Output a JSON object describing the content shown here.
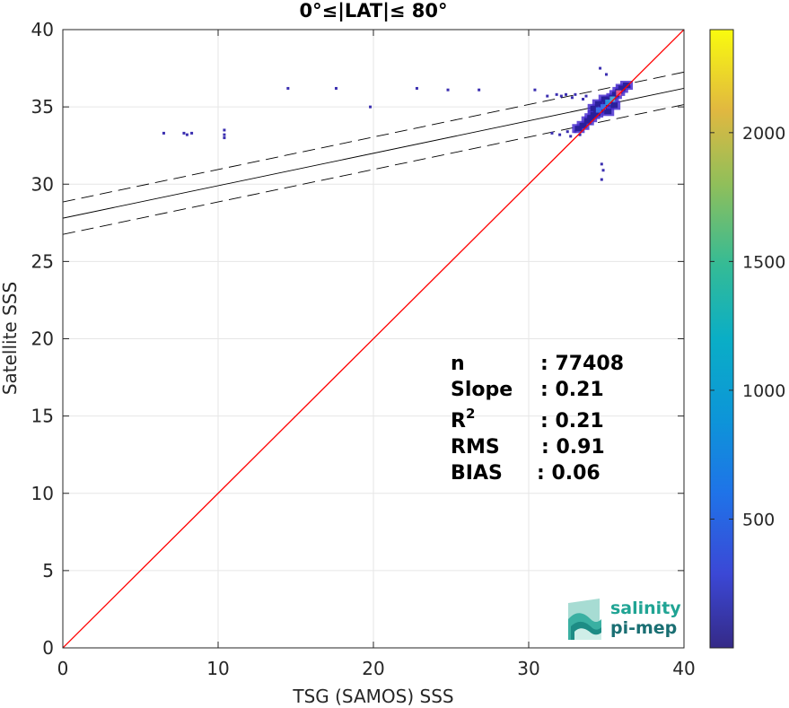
{
  "chart_data": {
    "type": "heatmap",
    "title": "0°≤|LAT|≤ 80°",
    "xlabel": "TSG (SAMOS) SSS",
    "ylabel": "Satellite SSS",
    "xlim": [
      0,
      40
    ],
    "ylim": [
      0,
      40
    ],
    "xticks": [
      "0",
      "10",
      "20",
      "30",
      "40"
    ],
    "yticks": [
      "0",
      "5",
      "10",
      "15",
      "20",
      "25",
      "30",
      "35",
      "40"
    ],
    "grid": true,
    "one_to_one_line": {
      "color": "#ff0000",
      "from": [
        0,
        0
      ],
      "to": [
        40,
        40
      ]
    },
    "regression": {
      "slope": 0.21,
      "intercept": 27.8,
      "envelope_offset": 1.05,
      "color": "#000000"
    },
    "stats": [
      {
        "label": "n",
        "value": ": 77408"
      },
      {
        "label": "Slope",
        "value": ": 0.21"
      },
      {
        "label": "R",
        "label_sup": "2",
        "value": ": 0.21"
      },
      {
        "label": "RMS",
        "value": ": 0.91"
      },
      {
        "label": "BIAS",
        "value": ": 0.06"
      }
    ],
    "colorbar": {
      "min": 0,
      "max": 2400,
      "ticks": [
        "500",
        "1000",
        "1500",
        "2000"
      ],
      "tick_values": [
        500,
        1000,
        1500,
        2000
      ],
      "colormap": "parula"
    },
    "density_core": {
      "center": [
        34.8,
        35.0
      ],
      "points": [
        [
          33.2,
          33.6
        ],
        [
          33.5,
          33.8
        ],
        [
          33.8,
          34.1
        ],
        [
          34.0,
          34.3
        ],
        [
          34.2,
          34.5
        ],
        [
          34.4,
          34.6
        ],
        [
          34.6,
          34.8
        ],
        [
          34.8,
          35.0
        ],
        [
          35.0,
          35.2
        ],
        [
          35.2,
          35.4
        ],
        [
          35.4,
          35.6
        ],
        [
          35.6,
          35.8
        ],
        [
          35.8,
          36.0
        ],
        [
          36.0,
          36.2
        ],
        [
          36.3,
          36.4
        ],
        [
          34.5,
          35.2
        ],
        [
          34.2,
          34.9
        ],
        [
          35.1,
          34.7
        ],
        [
          34.9,
          35.5
        ],
        [
          35.5,
          35.1
        ]
      ]
    },
    "scatter_points": [
      [
        6.5,
        33.3
      ],
      [
        7.8,
        33.3
      ],
      [
        8.0,
        33.2
      ],
      [
        8.3,
        33.3
      ],
      [
        10.4,
        33.2
      ],
      [
        10.4,
        33.5
      ],
      [
        10.4,
        33.0
      ],
      [
        14.5,
        36.2
      ],
      [
        17.6,
        36.2
      ],
      [
        19.8,
        35.0
      ],
      [
        22.8,
        36.2
      ],
      [
        24.8,
        36.1
      ],
      [
        26.8,
        36.1
      ],
      [
        30.4,
        36.1
      ],
      [
        31.2,
        35.7
      ],
      [
        31.8,
        35.8
      ],
      [
        32.1,
        35.7
      ],
      [
        32.4,
        35.8
      ],
      [
        32.8,
        35.6
      ],
      [
        33.0,
        35.8
      ],
      [
        31.5,
        33.3
      ],
      [
        32.0,
        33.2
      ],
      [
        32.5,
        33.4
      ],
      [
        32.7,
        33.1
      ],
      [
        33.0,
        33.4
      ],
      [
        33.3,
        33.2
      ],
      [
        33.5,
        35.5
      ],
      [
        33.7,
        35.7
      ],
      [
        34.6,
        37.5
      ],
      [
        35.0,
        37.1
      ],
      [
        34.7,
        31.3
      ],
      [
        34.8,
        30.9
      ],
      [
        34.7,
        30.3
      ],
      [
        36.2,
        36.5
      ],
      [
        36.5,
        36.3
      ]
    ]
  },
  "logo": {
    "line1": "salinity",
    "line2": "pi-mep"
  }
}
